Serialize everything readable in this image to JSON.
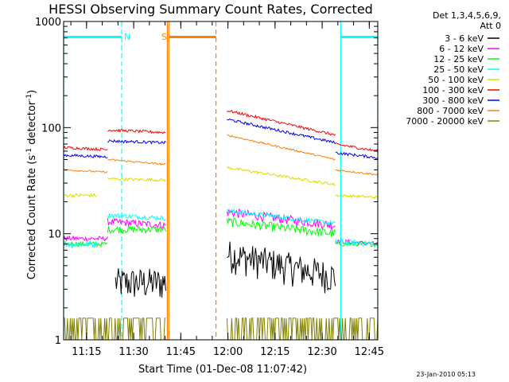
{
  "chart_data": {
    "type": "line",
    "title": "HESSI Observing Summary Count Rates, Corrected",
    "xlabel": "Start Time (01-Dec-08 11:07:42)",
    "ylabel_main": "Corrected Count Rate (s",
    "ylabel_sup1": "-1",
    "ylabel_mid": " detector",
    "ylabel_sup2": "-1",
    "ylabel_end": ")",
    "y_scale": "log",
    "ylim": [
      1,
      1000
    ],
    "xlim_minutes": [
      0,
      100
    ],
    "x_ticks": [
      {
        "m": 7.3,
        "label": "11:15"
      },
      {
        "m": 22.3,
        "label": "11:30"
      },
      {
        "m": 37.3,
        "label": "11:45"
      },
      {
        "m": 52.3,
        "label": "12:00"
      },
      {
        "m": 67.3,
        "label": "12:15"
      },
      {
        "m": 82.3,
        "label": "12:30"
      },
      {
        "m": 97.3,
        "label": "12:45"
      }
    ],
    "y_ticks": [
      {
        "v": 1,
        "label": "1"
      },
      {
        "v": 10,
        "label": "10"
      },
      {
        "v": 100,
        "label": "100"
      },
      {
        "v": 1000,
        "label": "1000"
      }
    ],
    "legend_header": [
      "Det 1,3,4,5,6,9,",
      "Att 0"
    ],
    "legend_position": "right",
    "events": {
      "night": {
        "label": "N",
        "color": "#00ffff",
        "bars": [
          [
            0,
            18.5
          ],
          [
            88.2,
            100
          ]
        ],
        "lines": [
          0,
          88.2
        ],
        "dashed": [
          18.5,
          100
        ]
      },
      "saa": {
        "label": "S",
        "color": "#ff7f00",
        "bars": [
          [
            33.5,
            48.5
          ]
        ],
        "lines": [
          33.0
        ],
        "dashed": [
          48.5
        ]
      }
    },
    "series": [
      {
        "name": "3 - 6 keV",
        "color": "#000000",
        "segments": [
          [
            16.5,
            32.5,
            3.5,
            3.5,
            0.35
          ],
          [
            52.0,
            86.5,
            6.5,
            4.0,
            0.35
          ]
        ]
      },
      {
        "name": "6 - 12 keV",
        "color": "#ff00ff",
        "segments": [
          [
            0,
            14.0,
            9.0,
            9.0,
            0.05
          ],
          [
            14.0,
            32.5,
            13.0,
            12.0,
            0.08
          ],
          [
            52.0,
            86.5,
            16.0,
            12.0,
            0.1
          ],
          [
            86.5,
            100,
            8.5,
            8.0,
            0.05
          ]
        ]
      },
      {
        "name": "12 - 25 keV",
        "color": "#00ff00",
        "segments": [
          [
            0,
            14.0,
            8.0,
            8.0,
            0.05
          ],
          [
            14.0,
            32.5,
            11.0,
            11.0,
            0.08
          ],
          [
            52.0,
            86.5,
            13.0,
            10.0,
            0.1
          ],
          [
            86.5,
            100,
            8.0,
            8.0,
            0.05
          ]
        ]
      },
      {
        "name": "25 - 50 keV",
        "color": "#00ffff",
        "segments": [
          [
            0,
            10.5,
            8.0,
            8.0,
            0.08
          ],
          [
            14.0,
            32.5,
            15.0,
            14.0,
            0.05
          ],
          [
            52.0,
            86.5,
            16.5,
            12.5,
            0.05
          ],
          [
            86.5,
            100,
            8.5,
            8.0,
            0.06
          ]
        ]
      },
      {
        "name": "50 - 100 keV",
        "color": "#dddd00",
        "segments": [
          [
            0,
            10.5,
            23.0,
            23.0,
            0.04
          ],
          [
            14.0,
            32.5,
            33.0,
            32.0,
            0.03
          ],
          [
            52.0,
            86.5,
            42.0,
            29.0,
            0.03
          ],
          [
            86.5,
            100,
            23.0,
            22.0,
            0.03
          ]
        ]
      },
      {
        "name": "100 - 300 keV",
        "color": "#ff0000",
        "segments": [
          [
            0,
            14.0,
            65.0,
            62.0,
            0.03
          ],
          [
            14.0,
            32.5,
            95.0,
            90.0,
            0.03
          ],
          [
            52.0,
            86.5,
            145.0,
            85.0,
            0.03
          ],
          [
            86.5,
            100,
            70.0,
            60.0,
            0.03
          ]
        ]
      },
      {
        "name": "300 - 800 keV",
        "color": "#0000ff",
        "segments": [
          [
            0,
            14.0,
            55.0,
            53.0,
            0.03
          ],
          [
            14.0,
            32.5,
            75.0,
            72.0,
            0.03
          ],
          [
            52.0,
            86.5,
            120.0,
            72.0,
            0.03
          ],
          [
            86.5,
            100,
            58.0,
            52.0,
            0.03
          ]
        ]
      },
      {
        "name": "800 - 7000 keV",
        "color": "#ff7f00",
        "segments": [
          [
            0,
            14.0,
            40.0,
            38.0,
            0.02
          ],
          [
            14.0,
            32.5,
            50.0,
            45.0,
            0.02
          ],
          [
            52.0,
            86.5,
            85.0,
            50.0,
            0.02
          ],
          [
            86.5,
            100,
            40.0,
            36.0,
            0.02
          ]
        ]
      },
      {
        "name": "7000 - 20000 keV",
        "color": "#808000",
        "segments": [
          [
            0,
            32.5,
            1.6,
            1.6,
            0.0
          ],
          [
            52.0,
            100,
            1.6,
            1.6,
            0.0
          ]
        ]
      }
    ],
    "footer_date": "23-Jan-2010 05:13"
  }
}
